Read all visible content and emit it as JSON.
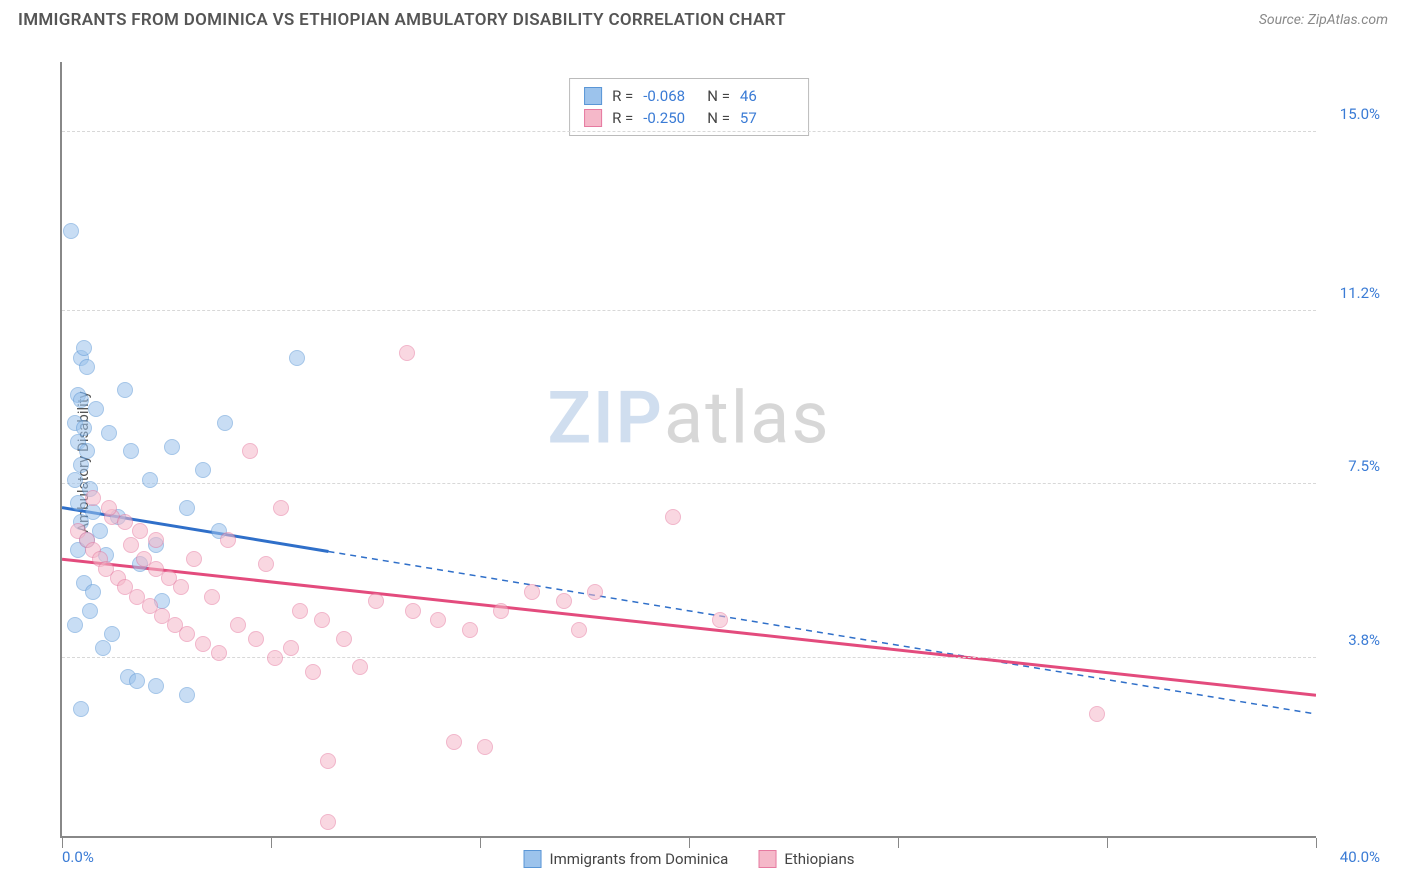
{
  "header": {
    "title": "IMMIGRANTS FROM DOMINICA VS ETHIOPIAN AMBULATORY DISABILITY CORRELATION CHART",
    "source": "Source: ZipAtlas.com"
  },
  "chart": {
    "type": "scatter",
    "ylabel": "Ambulatory Disability",
    "xlim": [
      0,
      40
    ],
    "ylim": [
      0,
      16.5
    ],
    "x_ticks": [
      0,
      6.67,
      13.33,
      20,
      26.67,
      33.33,
      40
    ],
    "x_axis_labels": {
      "min": "0.0%",
      "max": "40.0%"
    },
    "y_grid": [
      {
        "value": 3.8,
        "label": "3.8%"
      },
      {
        "value": 7.5,
        "label": "7.5%"
      },
      {
        "value": 11.2,
        "label": "11.2%"
      },
      {
        "value": 15.0,
        "label": "15.0%"
      }
    ],
    "background_color": "#ffffff",
    "grid_color": "#d8d8d8",
    "axis_color": "#888888",
    "ytick_label_color": "#3a7bd5",
    "point_radius": 8,
    "point_opacity": 0.55,
    "watermark": {
      "text_bold": "ZIP",
      "text_rest": "atlas"
    },
    "series": [
      {
        "name": "Immigrants from Dominica",
        "fill": "#9cc3ec",
        "stroke": "#5a96d6",
        "trend": {
          "color": "#2f6fc9",
          "width": 3,
          "y_at_xmin": 7.0,
          "y_at_xmax": 2.6,
          "solid_until_x": 8.5,
          "dashed_after": true
        },
        "stats": {
          "R": "-0.068",
          "N": "46"
        },
        "points": [
          [
            0.3,
            12.9
          ],
          [
            0.6,
            10.2
          ],
          [
            0.7,
            10.4
          ],
          [
            0.8,
            10.0
          ],
          [
            0.5,
            9.4
          ],
          [
            0.6,
            9.3
          ],
          [
            0.4,
            8.8
          ],
          [
            0.7,
            8.7
          ],
          [
            0.5,
            8.4
          ],
          [
            0.8,
            8.2
          ],
          [
            0.6,
            7.9
          ],
          [
            0.4,
            7.6
          ],
          [
            0.9,
            7.4
          ],
          [
            0.5,
            7.1
          ],
          [
            1.0,
            6.9
          ],
          [
            0.6,
            6.7
          ],
          [
            1.2,
            6.5
          ],
          [
            0.8,
            6.3
          ],
          [
            0.5,
            6.1
          ],
          [
            1.4,
            6.0
          ],
          [
            0.7,
            5.4
          ],
          [
            1.0,
            5.2
          ],
          [
            0.4,
            4.5
          ],
          [
            1.6,
            4.3
          ],
          [
            2.1,
            3.4
          ],
          [
            2.4,
            3.3
          ],
          [
            0.6,
            2.7
          ],
          [
            3.0,
            3.2
          ],
          [
            4.0,
            3.0
          ],
          [
            1.1,
            9.1
          ],
          [
            1.5,
            8.6
          ],
          [
            2.2,
            8.2
          ],
          [
            2.8,
            7.6
          ],
          [
            3.5,
            8.3
          ],
          [
            4.0,
            7.0
          ],
          [
            4.5,
            7.8
          ],
          [
            5.0,
            6.5
          ],
          [
            5.2,
            8.8
          ],
          [
            7.5,
            10.2
          ],
          [
            1.8,
            6.8
          ],
          [
            2.5,
            5.8
          ],
          [
            3.2,
            5.0
          ],
          [
            1.3,
            4.0
          ],
          [
            0.9,
            4.8
          ],
          [
            2.0,
            9.5
          ],
          [
            3.0,
            6.2
          ]
        ]
      },
      {
        "name": "Ethiopians",
        "fill": "#f5b8c9",
        "stroke": "#e67aa0",
        "trend": {
          "color": "#e34b7d",
          "width": 3,
          "y_at_xmin": 5.9,
          "y_at_xmax": 3.0,
          "solid_until_x": 40,
          "dashed_after": false
        },
        "stats": {
          "R": "-0.250",
          "N": "57"
        },
        "points": [
          [
            0.5,
            6.5
          ],
          [
            0.8,
            6.3
          ],
          [
            1.0,
            6.1
          ],
          [
            1.2,
            5.9
          ],
          [
            1.4,
            5.7
          ],
          [
            1.6,
            6.8
          ],
          [
            1.8,
            5.5
          ],
          [
            2.0,
            5.3
          ],
          [
            2.2,
            6.2
          ],
          [
            2.4,
            5.1
          ],
          [
            2.6,
            5.9
          ],
          [
            2.8,
            4.9
          ],
          [
            3.0,
            5.7
          ],
          [
            3.2,
            4.7
          ],
          [
            3.4,
            5.5
          ],
          [
            3.6,
            4.5
          ],
          [
            3.8,
            5.3
          ],
          [
            4.0,
            4.3
          ],
          [
            4.2,
            5.9
          ],
          [
            4.5,
            4.1
          ],
          [
            4.8,
            5.1
          ],
          [
            5.0,
            3.9
          ],
          [
            5.3,
            6.3
          ],
          [
            5.6,
            4.5
          ],
          [
            6.0,
            8.2
          ],
          [
            6.2,
            4.2
          ],
          [
            6.5,
            5.8
          ],
          [
            6.8,
            3.8
          ],
          [
            7.0,
            7.0
          ],
          [
            7.3,
            4.0
          ],
          [
            7.6,
            4.8
          ],
          [
            8.0,
            3.5
          ],
          [
            8.3,
            4.6
          ],
          [
            8.5,
            1.6
          ],
          [
            9.0,
            4.2
          ],
          [
            9.5,
            3.6
          ],
          [
            10.0,
            5.0
          ],
          [
            11.0,
            10.3
          ],
          [
            11.2,
            4.8
          ],
          [
            12.0,
            4.6
          ],
          [
            12.5,
            2.0
          ],
          [
            13.0,
            4.4
          ],
          [
            13.5,
            1.9
          ],
          [
            14.0,
            4.8
          ],
          [
            15.0,
            5.2
          ],
          [
            16.0,
            5.0
          ],
          [
            16.5,
            4.4
          ],
          [
            17.0,
            5.2
          ],
          [
            19.5,
            6.8
          ],
          [
            21.0,
            4.6
          ],
          [
            33.0,
            2.6
          ],
          [
            1.0,
            7.2
          ],
          [
            1.5,
            7.0
          ],
          [
            2.0,
            6.7
          ],
          [
            2.5,
            6.5
          ],
          [
            3.0,
            6.3
          ],
          [
            8.5,
            0.3
          ]
        ]
      }
    ],
    "legend_bottom": [
      {
        "label": "Immigrants from Dominica",
        "fill": "#9cc3ec",
        "stroke": "#5a96d6"
      },
      {
        "label": "Ethiopians",
        "fill": "#f5b8c9",
        "stroke": "#e67aa0"
      }
    ]
  }
}
